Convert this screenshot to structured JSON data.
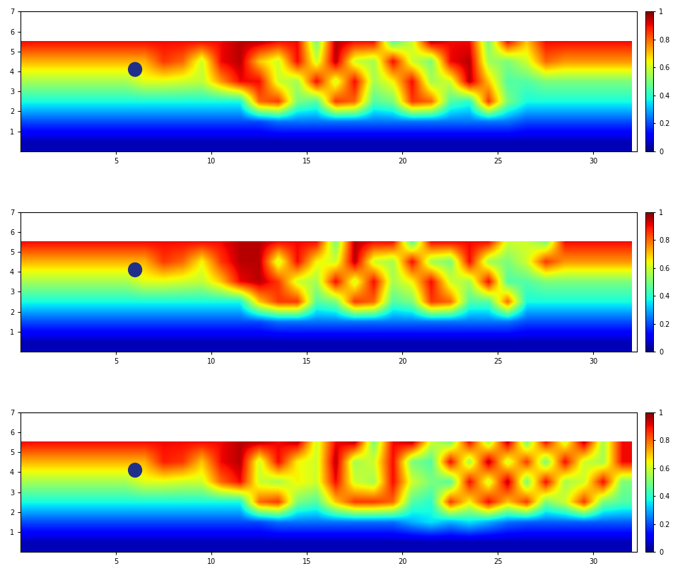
{
  "chart_data": [
    {
      "type": "heatmap",
      "xlim": [
        0,
        32.3
      ],
      "ylim": [
        0,
        7
      ],
      "xticks": [
        5,
        10,
        15,
        20,
        25,
        30
      ],
      "yticks": [
        1,
        2,
        3,
        4,
        5,
        6,
        7
      ],
      "x": [
        0.5,
        1.5,
        2.5,
        3.5,
        4.5,
        5.5,
        6.5,
        7.5,
        8.5,
        9.5,
        10.5,
        11.5,
        12.5,
        13.5,
        14.5,
        15.5,
        16.5,
        17.5,
        18.5,
        19.5,
        20.5,
        21.5,
        22.5,
        23.5,
        24.5,
        25.5,
        26.5,
        27.5,
        28.5,
        29.5,
        30.5,
        31.5
      ],
      "y": [
        0.5,
        1.5,
        2.5,
        3.5,
        4.5,
        5.5,
        6.5
      ],
      "cells": [
        [
          0.05,
          0.05,
          0.05,
          0.05,
          0.05,
          0.05,
          0.05,
          0.05,
          0.05,
          0.05,
          0.05,
          0.05,
          0.05,
          0.05,
          0.05,
          0.05,
          0.05,
          0.05,
          0.05,
          0.05,
          0.05,
          0.05,
          0.05,
          0.05,
          0.05,
          0.05,
          0.05,
          0.05,
          0.05,
          0.05,
          0.05,
          0.05
        ],
        [
          0.2,
          0.2,
          0.2,
          0.2,
          0.2,
          0.2,
          0.2,
          0.2,
          0.2,
          0.2,
          0.2,
          0.2,
          0.2,
          0.24,
          0.24,
          0.24,
          0.24,
          0.24,
          0.24,
          0.24,
          0.24,
          0.24,
          0.24,
          0.24,
          0.24,
          0.24,
          0.2,
          0.2,
          0.2,
          0.2,
          0.2,
          0.2
        ],
        [
          0.38,
          0.38,
          0.38,
          0.38,
          0.38,
          0.38,
          0.38,
          0.38,
          0.38,
          0.38,
          0.38,
          0.38,
          0.8,
          0.85,
          0.5,
          0.45,
          0.85,
          0.8,
          0.45,
          0.5,
          0.85,
          0.8,
          0.45,
          0.4,
          0.85,
          0.5,
          0.38,
          0.38,
          0.38,
          0.38,
          0.38,
          0.38
        ],
        [
          0.55,
          0.55,
          0.55,
          0.55,
          0.55,
          0.55,
          0.62,
          0.62,
          0.6,
          0.58,
          0.75,
          0.9,
          0.9,
          0.6,
          0.55,
          0.9,
          0.6,
          0.9,
          0.55,
          0.65,
          0.9,
          0.55,
          0.6,
          0.95,
          0.7,
          0.45,
          0.45,
          0.5,
          0.5,
          0.5,
          0.5,
          0.5
        ],
        [
          0.72,
          0.72,
          0.72,
          0.72,
          0.72,
          0.72,
          0.72,
          0.85,
          0.8,
          0.6,
          0.9,
          0.95,
          0.7,
          0.6,
          0.9,
          0.6,
          0.95,
          0.6,
          0.55,
          0.9,
          0.6,
          0.5,
          0.9,
          0.95,
          0.55,
          0.5,
          0.6,
          0.8,
          0.75,
          0.75,
          0.75,
          0.75
        ],
        [
          0.9,
          0.9,
          0.9,
          0.9,
          0.9,
          0.9,
          0.9,
          0.9,
          0.9,
          0.9,
          0.9,
          0.95,
          0.95,
          0.9,
          0.9,
          0.5,
          0.95,
          0.9,
          0.9,
          0.45,
          0.6,
          0.95,
          0.9,
          0.9,
          0.5,
          0.9,
          0.7,
          0.9,
          0.9,
          0.9,
          0.9,
          0.9
        ],
        [
          null,
          null,
          null,
          null,
          null,
          null,
          null,
          null,
          null,
          null,
          null,
          null,
          null,
          null,
          null,
          null,
          null,
          null,
          null,
          null,
          null,
          null,
          null,
          null,
          null,
          null,
          null,
          null,
          null,
          null,
          null,
          null
        ]
      ],
      "color_range": [
        0,
        1
      ],
      "color_ticks": [
        0,
        0.2,
        0.4,
        0.6,
        0.8,
        1
      ],
      "obstacle": {
        "x": 6,
        "y": 4.1,
        "radius": 0.35,
        "color": "#1f2f8a"
      }
    },
    {
      "type": "heatmap",
      "xlim": [
        0,
        32.3
      ],
      "ylim": [
        0,
        7
      ],
      "xticks": [
        5,
        10,
        15,
        20,
        25,
        30
      ],
      "yticks": [
        1,
        2,
        3,
        4,
        5,
        6,
        7
      ],
      "x": [
        0.5,
        1.5,
        2.5,
        3.5,
        4.5,
        5.5,
        6.5,
        7.5,
        8.5,
        9.5,
        10.5,
        11.5,
        12.5,
        13.5,
        14.5,
        15.5,
        16.5,
        17.5,
        18.5,
        19.5,
        20.5,
        21.5,
        22.5,
        23.5,
        24.5,
        25.5,
        26.5,
        27.5,
        28.5,
        29.5,
        30.5,
        31.5
      ],
      "y": [
        0.5,
        1.5,
        2.5,
        3.5,
        4.5,
        5.5,
        6.5
      ],
      "cells": [
        [
          0.05,
          0.05,
          0.05,
          0.05,
          0.05,
          0.05,
          0.05,
          0.05,
          0.05,
          0.05,
          0.05,
          0.05,
          0.05,
          0.05,
          0.05,
          0.05,
          0.05,
          0.05,
          0.05,
          0.05,
          0.05,
          0.05,
          0.05,
          0.05,
          0.05,
          0.05,
          0.05,
          0.05,
          0.05,
          0.05,
          0.05,
          0.05
        ],
        [
          0.2,
          0.2,
          0.2,
          0.2,
          0.2,
          0.2,
          0.2,
          0.2,
          0.2,
          0.2,
          0.2,
          0.2,
          0.2,
          0.24,
          0.24,
          0.24,
          0.24,
          0.24,
          0.24,
          0.24,
          0.24,
          0.24,
          0.24,
          0.24,
          0.24,
          0.24,
          0.2,
          0.2,
          0.2,
          0.2,
          0.2,
          0.2
        ],
        [
          0.38,
          0.38,
          0.38,
          0.38,
          0.38,
          0.38,
          0.38,
          0.38,
          0.38,
          0.38,
          0.38,
          0.38,
          0.7,
          0.85,
          0.85,
          0.45,
          0.5,
          0.85,
          0.8,
          0.45,
          0.5,
          0.85,
          0.8,
          0.45,
          0.45,
          0.8,
          0.38,
          0.38,
          0.38,
          0.38,
          0.38,
          0.38
        ],
        [
          0.55,
          0.55,
          0.55,
          0.55,
          0.55,
          0.55,
          0.62,
          0.62,
          0.6,
          0.58,
          0.7,
          0.9,
          0.95,
          0.85,
          0.6,
          0.55,
          0.9,
          0.6,
          0.9,
          0.55,
          0.65,
          0.9,
          0.6,
          0.55,
          0.9,
          0.45,
          0.45,
          0.5,
          0.5,
          0.5,
          0.5,
          0.5
        ],
        [
          0.72,
          0.72,
          0.72,
          0.72,
          0.72,
          0.72,
          0.72,
          0.85,
          0.8,
          0.65,
          0.85,
          0.95,
          0.95,
          0.6,
          0.9,
          0.65,
          0.6,
          0.95,
          0.6,
          0.55,
          0.9,
          0.55,
          0.5,
          0.9,
          0.55,
          0.5,
          0.6,
          0.85,
          0.75,
          0.75,
          0.75,
          0.75
        ],
        [
          0.9,
          0.9,
          0.9,
          0.9,
          0.9,
          0.9,
          0.9,
          0.9,
          0.9,
          0.9,
          0.9,
          0.95,
          0.95,
          0.9,
          0.9,
          0.9,
          0.5,
          0.95,
          0.9,
          0.9,
          0.45,
          0.9,
          0.9,
          0.9,
          0.9,
          0.6,
          0.6,
          0.5,
          0.9,
          0.9,
          0.9,
          0.9
        ],
        [
          null,
          null,
          null,
          null,
          null,
          null,
          null,
          null,
          null,
          null,
          null,
          null,
          null,
          null,
          null,
          null,
          null,
          null,
          null,
          null,
          null,
          null,
          null,
          null,
          null,
          null,
          null,
          null,
          null,
          null,
          null,
          null
        ]
      ],
      "color_range": [
        0,
        1
      ],
      "color_ticks": [
        0,
        0.2,
        0.4,
        0.6,
        0.8,
        1
      ],
      "obstacle": {
        "x": 6,
        "y": 4.1,
        "radius": 0.35,
        "color": "#1f2f8a"
      }
    },
    {
      "type": "heatmap",
      "xlim": [
        0,
        32.3
      ],
      "ylim": [
        0,
        7
      ],
      "xticks": [
        5,
        10,
        15,
        20,
        25,
        30
      ],
      "yticks": [
        1,
        2,
        3,
        4,
        5,
        6,
        7
      ],
      "x": [
        0.5,
        1.5,
        2.5,
        3.5,
        4.5,
        5.5,
        6.5,
        7.5,
        8.5,
        9.5,
        10.5,
        11.5,
        12.5,
        13.5,
        14.5,
        15.5,
        16.5,
        17.5,
        18.5,
        19.5,
        20.5,
        21.5,
        22.5,
        23.5,
        24.5,
        25.5,
        26.5,
        27.5,
        28.5,
        29.5,
        30.5,
        31.5
      ],
      "y": [
        0.5,
        1.5,
        2.5,
        3.5,
        4.5,
        5.5,
        6.5
      ],
      "cells": [
        [
          0.05,
          0.05,
          0.05,
          0.05,
          0.05,
          0.05,
          0.05,
          0.05,
          0.05,
          0.05,
          0.05,
          0.05,
          0.05,
          0.05,
          0.05,
          0.05,
          0.05,
          0.05,
          0.05,
          0.05,
          0.05,
          0.05,
          0.05,
          0.05,
          0.05,
          0.05,
          0.05,
          0.05,
          0.05,
          0.05,
          0.05,
          0.05
        ],
        [
          0.2,
          0.2,
          0.2,
          0.2,
          0.2,
          0.2,
          0.2,
          0.2,
          0.2,
          0.2,
          0.2,
          0.2,
          0.2,
          0.24,
          0.24,
          0.24,
          0.24,
          0.24,
          0.24,
          0.24,
          0.3,
          0.35,
          0.3,
          0.35,
          0.3,
          0.24,
          0.22,
          0.22,
          0.22,
          0.22,
          0.22,
          0.22
        ],
        [
          0.38,
          0.38,
          0.38,
          0.38,
          0.38,
          0.38,
          0.38,
          0.38,
          0.38,
          0.38,
          0.38,
          0.38,
          0.8,
          0.85,
          0.5,
          0.45,
          0.7,
          0.85,
          0.85,
          0.8,
          0.45,
          0.4,
          0.85,
          0.65,
          0.9,
          0.7,
          0.85,
          0.5,
          0.6,
          0.85,
          0.5,
          0.45
        ],
        [
          0.55,
          0.55,
          0.55,
          0.55,
          0.55,
          0.55,
          0.62,
          0.62,
          0.6,
          0.6,
          0.8,
          0.9,
          0.6,
          0.55,
          0.65,
          0.6,
          0.9,
          0.6,
          0.55,
          0.9,
          0.6,
          0.5,
          0.45,
          0.9,
          0.6,
          0.95,
          0.5,
          0.9,
          0.55,
          0.6,
          0.9,
          0.5
        ],
        [
          0.72,
          0.72,
          0.72,
          0.72,
          0.72,
          0.72,
          0.72,
          0.88,
          0.85,
          0.7,
          0.9,
          0.95,
          0.6,
          0.9,
          0.65,
          0.6,
          0.95,
          0.55,
          0.6,
          0.9,
          0.5,
          0.45,
          0.9,
          0.55,
          0.95,
          0.6,
          0.85,
          0.5,
          0.9,
          0.6,
          0.55,
          0.9
        ],
        [
          0.9,
          0.9,
          0.9,
          0.9,
          0.9,
          0.9,
          0.9,
          0.9,
          0.9,
          0.9,
          0.9,
          0.95,
          0.95,
          0.9,
          0.95,
          0.6,
          0.9,
          0.95,
          0.5,
          0.9,
          0.95,
          0.6,
          0.5,
          0.9,
          0.55,
          0.95,
          0.5,
          0.9,
          0.6,
          0.95,
          0.55,
          0.9
        ],
        [
          null,
          null,
          null,
          null,
          null,
          null,
          null,
          null,
          null,
          null,
          null,
          null,
          null,
          null,
          null,
          null,
          null,
          null,
          null,
          null,
          null,
          null,
          null,
          null,
          null,
          null,
          null,
          null,
          null,
          null,
          null,
          null
        ]
      ],
      "color_range": [
        0,
        1
      ],
      "color_ticks": [
        0,
        0.2,
        0.4,
        0.6,
        0.8,
        1
      ],
      "obstacle": {
        "x": 6,
        "y": 4.1,
        "radius": 0.35,
        "color": "#1f2f8a"
      }
    }
  ]
}
